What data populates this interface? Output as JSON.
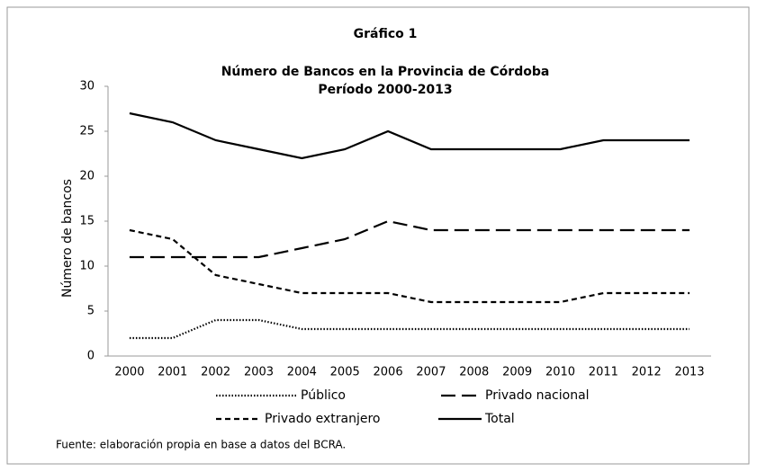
{
  "chart_data": {
    "type": "line",
    "label": "Gráfico 1",
    "title": "Número de Bancos en la Provincia de Córdoba",
    "subtitle": "Período 2000-2013",
    "y_label": "Número  de bancos",
    "source": "Fuente: elaboración propia en base a datos del BCRA.",
    "categories": [
      "2000",
      "2001",
      "2002",
      "2003",
      "2004",
      "2005",
      "2006",
      "2007",
      "2008",
      "2009",
      "2010",
      "2011",
      "2012",
      "2013"
    ],
    "series": [
      {
        "name": "Público",
        "color": "#000000",
        "style": "dotted",
        "values": [
          2,
          2,
          4,
          4,
          3,
          3,
          3,
          3,
          3,
          3,
          3,
          3,
          3,
          3
        ]
      },
      {
        "name": "Privado nacional",
        "color": "#000000",
        "style": "long-dash",
        "values": [
          11,
          11,
          11,
          11,
          12,
          13,
          15,
          14,
          14,
          14,
          14,
          14,
          14,
          14
        ]
      },
      {
        "name": "Privado extranjero",
        "color": "#000000",
        "style": "dash",
        "values": [
          14,
          13,
          9,
          8,
          7,
          7,
          7,
          6,
          6,
          6,
          6,
          7,
          7,
          7
        ]
      },
      {
        "name": "Total",
        "color": "#000000",
        "style": "solid",
        "values": [
          27,
          26,
          24,
          23,
          22,
          23,
          25,
          23,
          23,
          23,
          23,
          24,
          24,
          24
        ]
      }
    ],
    "ylim": [
      0,
      30
    ],
    "yticks": [
      0,
      5,
      10,
      15,
      20,
      25,
      30
    ],
    "grid": false
  }
}
